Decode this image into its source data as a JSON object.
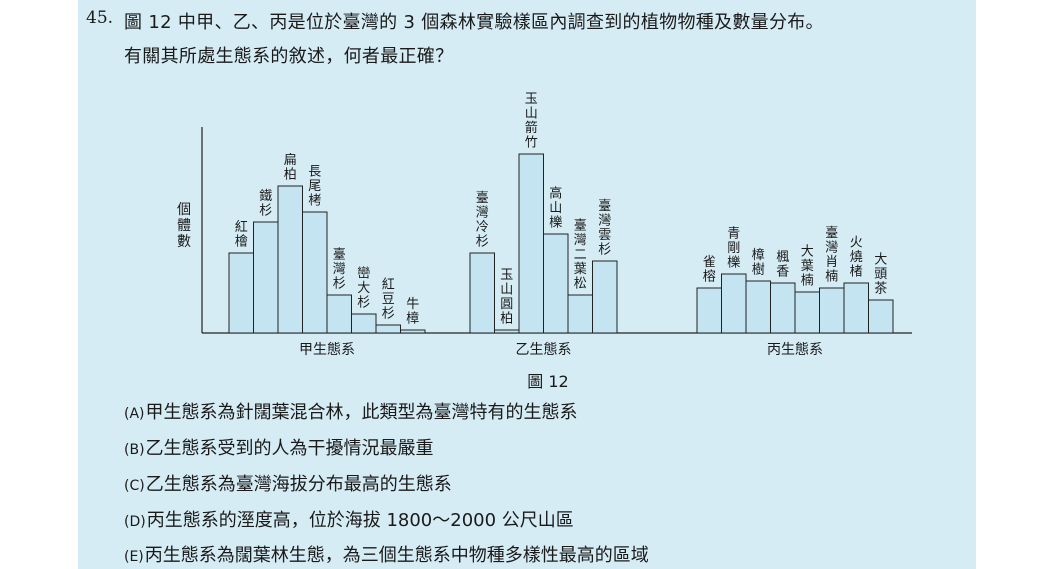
{
  "question": {
    "number": "45.",
    "line1": "圖 12 中甲、乙、丙是位於臺灣的 3 個森林實驗樣區內調查到的植物物種及數量分布。",
    "line2": "有關其所處生態系的敘述，何者最正確？"
  },
  "figure_caption": "圖 12",
  "chart_data": {
    "type": "bar",
    "ylabel": "個體數",
    "groups": [
      {
        "name": "甲生態系",
        "species": [
          "紅檜",
          "鐵杉",
          "扁柏",
          "長尾栲",
          "臺灣杉",
          "巒大杉",
          "紅豆杉",
          "牛樟"
        ],
        "values": [
          80,
          111,
          147,
          121,
          38,
          19,
          8,
          3
        ]
      },
      {
        "name": "乙生態系",
        "species": [
          "臺灣冷杉",
          "玉山圓柏",
          "玉山箭竹",
          "高山櫟",
          "臺灣二葉松",
          "臺灣雲杉"
        ],
        "values": [
          80,
          3,
          179,
          99,
          38,
          72
        ]
      },
      {
        "name": "丙生態系",
        "species": [
          "雀榕",
          "青剛櫟",
          "樟樹",
          "楓香",
          "大葉楠",
          "臺灣肖楠",
          "火燒楮",
          "大頭茶"
        ],
        "values": [
          45,
          59,
          52,
          50,
          41,
          45,
          50,
          33
        ]
      }
    ]
  },
  "options": [
    {
      "mark": "(A)",
      "text": "甲生態系為針闊葉混合林，此類型為臺灣特有的生態系"
    },
    {
      "mark": "(B)",
      "text": "乙生態系受到的人為干擾情況最嚴重"
    },
    {
      "mark": "(C)",
      "text": "乙生態系為臺灣海拔分布最高的生態系"
    },
    {
      "mark": "(D)",
      "text": "丙生態系的溼度高，位於海拔 1800～2000 公尺山區"
    },
    {
      "mark": "(E)",
      "text": "丙生態系為闊葉林生態，為三個生態系中物種多樣性最高的區域"
    }
  ],
  "colors": {
    "panel_bg": "#d6ecf5",
    "bar_fill": "#c4e4f1",
    "bar_stroke": "#222222"
  }
}
